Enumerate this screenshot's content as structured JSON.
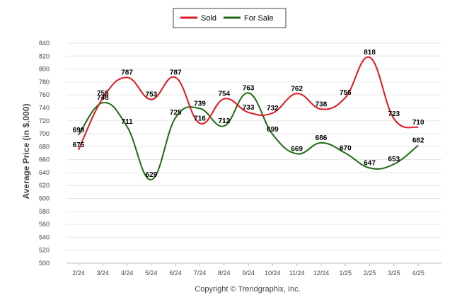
{
  "chart_data": {
    "type": "line",
    "title": "",
    "xlabel": "",
    "ylabel": "Average Price (in $,000)",
    "ylim": [
      500,
      840
    ],
    "y_tick_step": 20,
    "grid": "horizontal",
    "legend_position": "top-center",
    "categories": [
      "2/24",
      "3/24",
      "4/24",
      "5/24",
      "6/24",
      "7/24",
      "8/24",
      "9/24",
      "10/24",
      "11/24",
      "12/24",
      "1/25",
      "2/25",
      "3/25",
      "4/25"
    ],
    "series": [
      {
        "name": "Sold",
        "color": "#e0191e",
        "values": [
          675,
          755,
          787,
          753,
          787,
          716,
          754,
          733,
          732,
          762,
          738,
          756,
          818,
          723,
          710
        ]
      },
      {
        "name": "For Sale",
        "color": "#1e6b14",
        "values": [
          698,
          748,
          711,
          629,
          725,
          739,
          712,
          763,
          699,
          669,
          686,
          670,
          647,
          653,
          682
        ]
      }
    ]
  },
  "footer": {
    "copyright": "Copyright © Trendgraphix, Inc."
  }
}
